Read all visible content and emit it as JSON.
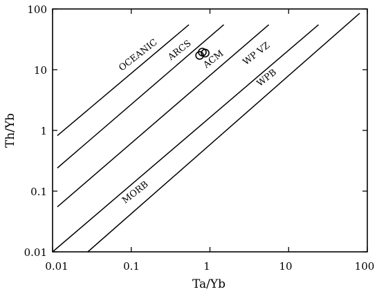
{
  "chart_data": {
    "type": "scatter",
    "title": "",
    "xlabel": "Ta/Yb",
    "ylabel": "Th/Yb",
    "xscale": "log",
    "yscale": "log",
    "xlim": [
      0.01,
      100
    ],
    "ylim": [
      0.01,
      100
    ],
    "x_tick_labels": [
      "0.01",
      "0.1",
      "1",
      "10",
      "100"
    ],
    "y_tick_labels": [
      "0.01",
      "0.1",
      "1",
      "10",
      "100"
    ],
    "x_ticks": [
      0.01,
      0.1,
      1,
      10,
      100
    ],
    "y_ticks": [
      0.01,
      0.1,
      1,
      10,
      100
    ],
    "grid": false,
    "legend": "none",
    "boundary_lines": [
      {
        "x": [
          0.0115,
          0.54
        ],
        "y": [
          0.82,
          55
        ]
      },
      {
        "x": [
          0.0115,
          1.5
        ],
        "y": [
          0.24,
          55
        ]
      },
      {
        "x": [
          0.0115,
          5.6
        ],
        "y": [
          0.055,
          55
        ]
      },
      {
        "x": [
          0.01,
          24
        ],
        "y": [
          0.01,
          55
        ]
      },
      {
        "x": [
          0.028,
          80
        ],
        "y": [
          0.01,
          85
        ]
      }
    ],
    "field_labels": [
      {
        "text": "OCEANIC",
        "x": 0.09,
        "y": 13.5
      },
      {
        "text": "ARCS",
        "x": 0.45,
        "y": 17
      },
      {
        "text": "ACM",
        "x": 1.2,
        "y": 11
      },
      {
        "text": "WP VZ",
        "x": 3.5,
        "y": 11
      },
      {
        "text": "WPB",
        "x": 5.5,
        "y": 3
      },
      {
        "text": "MORB",
        "x": 0.1,
        "y": 0.09
      }
    ],
    "series": [
      {
        "x": [
          0.74,
          0.8,
          0.87
        ],
        "y": [
          17.2,
          19.5,
          18.8
        ],
        "marker": "open-circle"
      }
    ]
  }
}
